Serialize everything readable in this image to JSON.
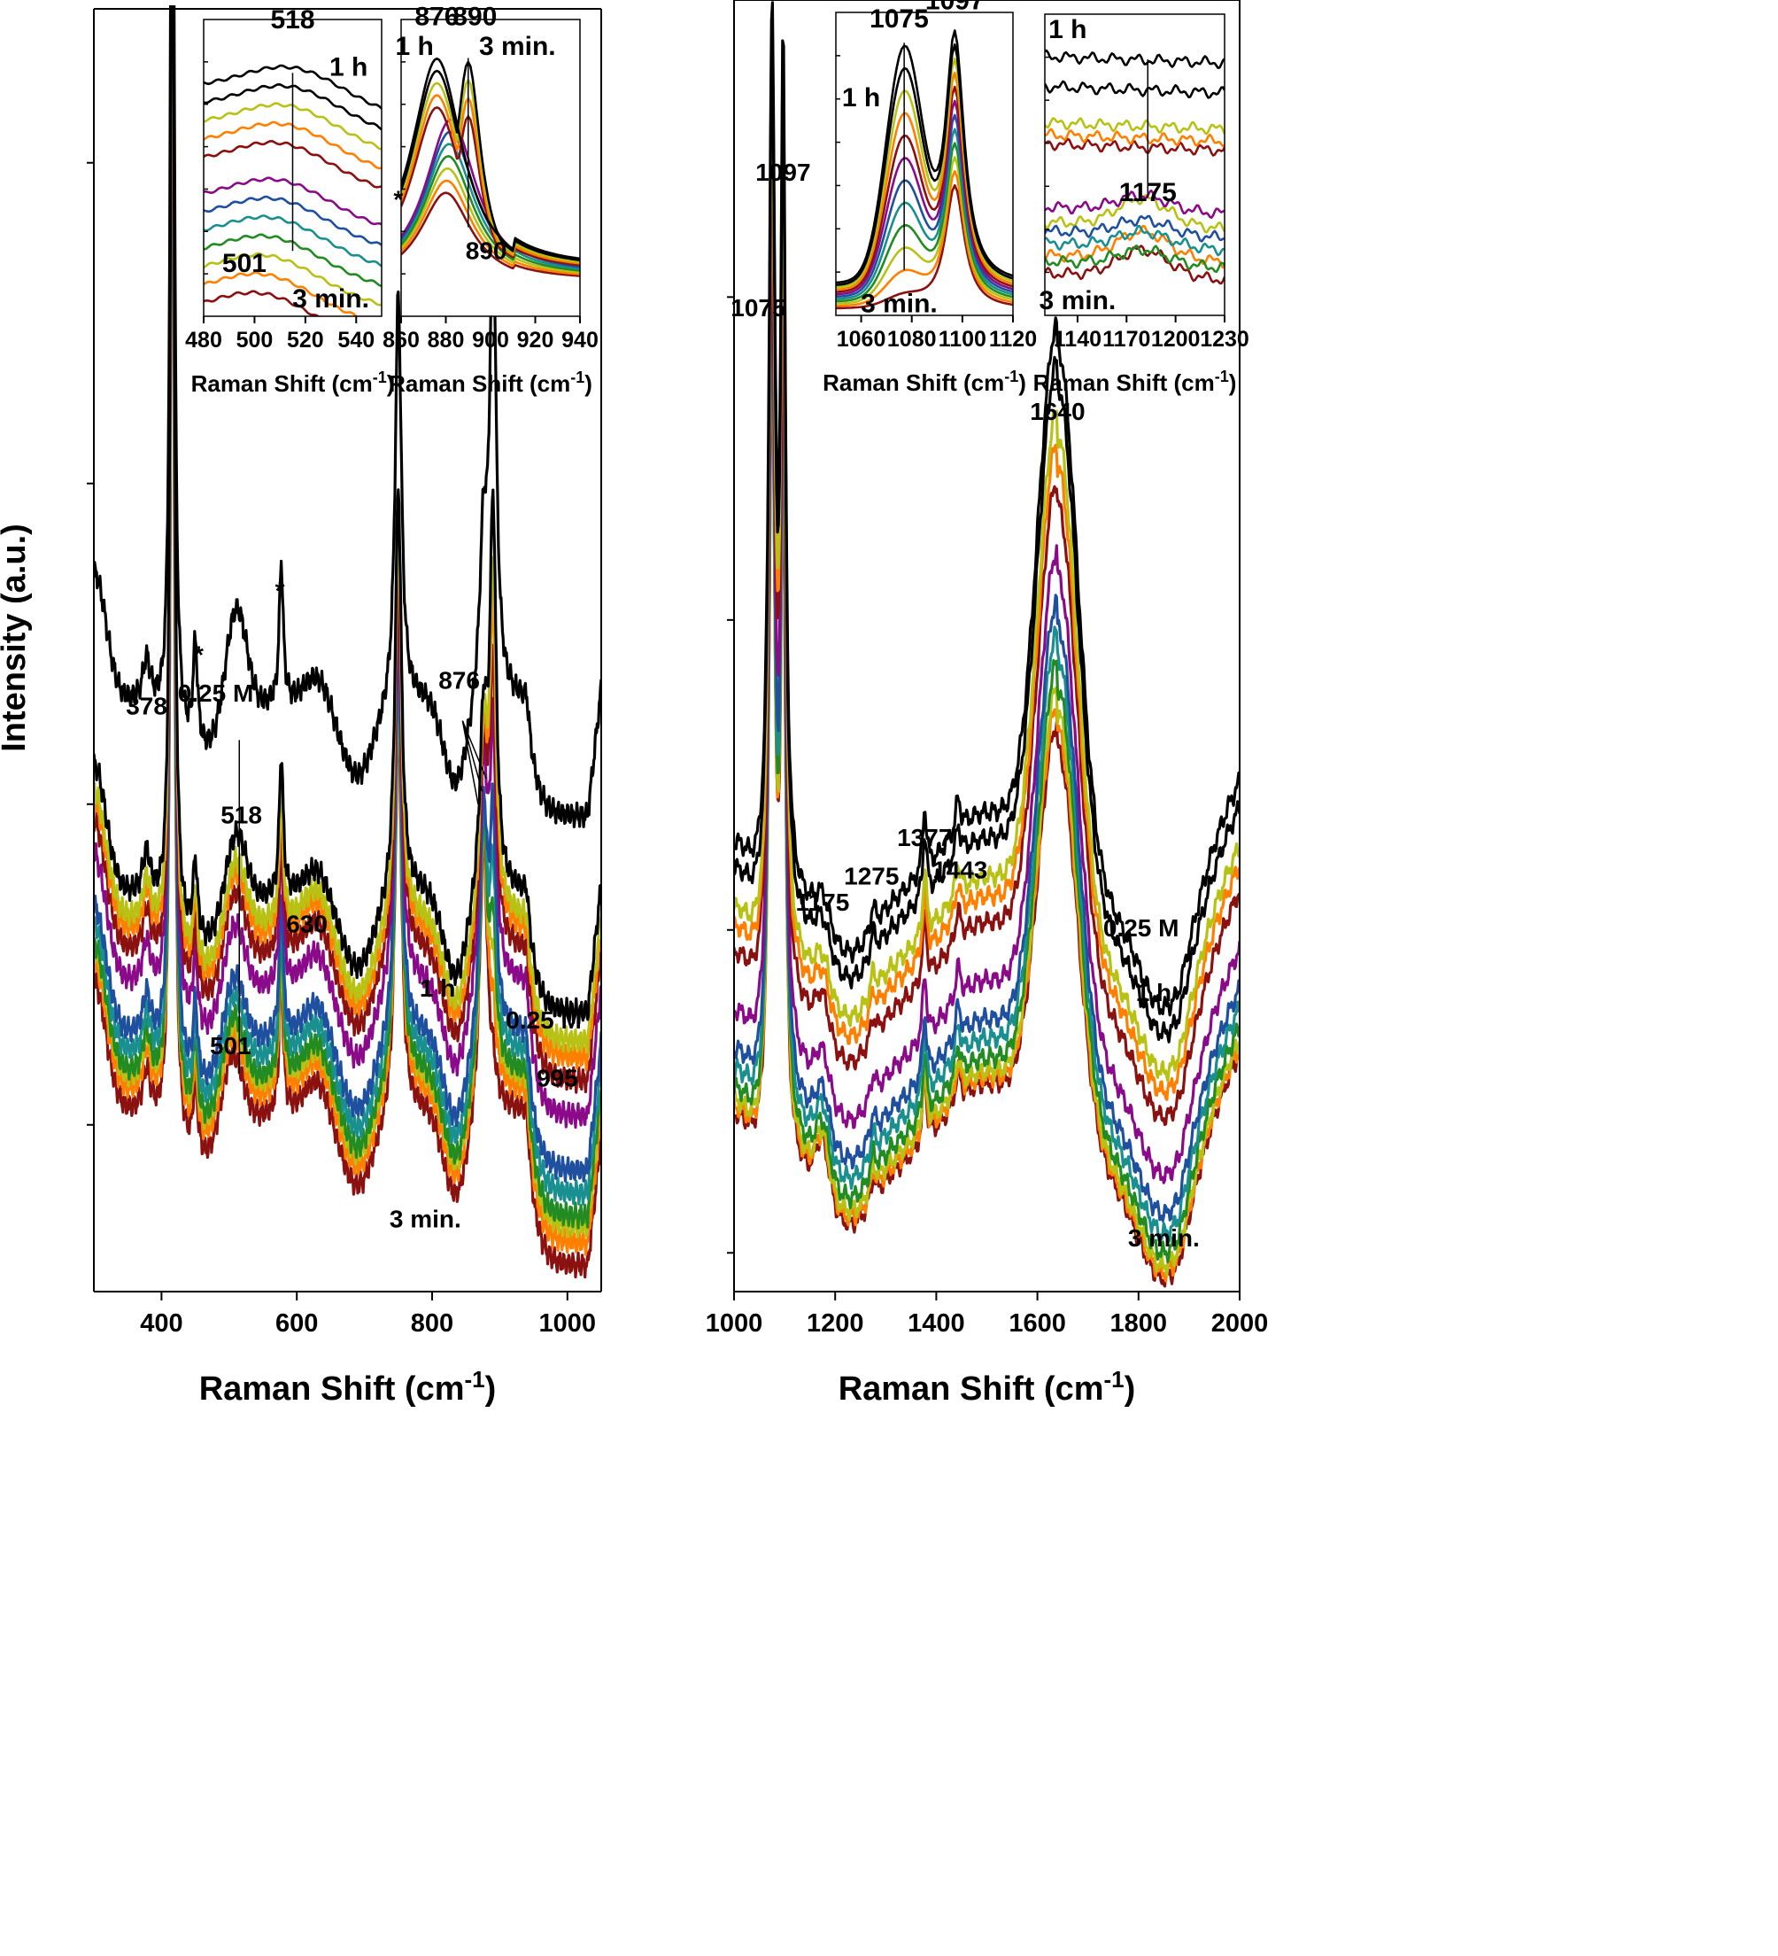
{
  "figure": {
    "y_axis_title": "Intensity (a.u.)"
  },
  "chart_data": [
    {
      "type": "line",
      "panel": "left-main",
      "xlabel": "Raman Shift (cm",
      "xlabel_sup": "-1",
      "xlabel_end": ")",
      "ylabel": "Intensity (a.u.)",
      "xlim": [
        300,
        1050
      ],
      "ylim": [
        0,
        100
      ],
      "xticks": [
        "400",
        "600",
        "800",
        "1000"
      ],
      "x_tick_values": [
        400,
        600,
        800,
        1000
      ],
      "y_minor_ticks": [
        13,
        38,
        63,
        88
      ],
      "series_count": 12,
      "series_colors": [
        "#000000",
        "#000000",
        "#b8c214",
        "#ff8000",
        "#8b1010",
        "#8a0a8a",
        "#1f4f9f",
        "#1a8f8f",
        "#228b22",
        "#b8c214",
        "#ff8000",
        "#8b1010"
      ],
      "series_offsets": [
        46,
        31,
        29,
        28,
        26.5,
        24,
        20,
        18.5,
        17,
        16.5,
        15.5,
        14
      ],
      "peaks": [
        {
          "x": 378,
          "h": 2,
          "w": 8
        },
        {
          "x": 416,
          "h": 95,
          "w": 3
        },
        {
          "x": 450,
          "h": 6,
          "w": 4
        },
        {
          "x": 515,
          "h": 7,
          "w": 20
        },
        {
          "x": 577,
          "h": 12,
          "w": 3.5
        },
        {
          "x": 750,
          "h": 32,
          "w": 6
        },
        {
          "x": 876,
          "h": 22,
          "w": 7
        },
        {
          "x": 890,
          "h": 30,
          "w": 6
        }
      ],
      "annotations": [
        {
          "text": "*",
          "x": 425,
          "y": 101
        },
        {
          "text": "378",
          "x": 378,
          "y": 45
        },
        {
          "text": "*",
          "x": 455,
          "y": 49
        },
        {
          "text": "0.25 M",
          "x": 480,
          "y": 46
        },
        {
          "text": "*",
          "x": 575,
          "y": 54
        },
        {
          "text": "*",
          "x": 750,
          "y": 84.5
        },
        {
          "text": "890",
          "x": 880,
          "y": 80.5
        },
        {
          "text": "876",
          "x": 840,
          "y": 47
        },
        {
          "text": "518",
          "x": 518,
          "y": 36.5
        },
        {
          "text": "630",
          "x": 615,
          "y": 28
        },
        {
          "text": "1 h",
          "x": 808,
          "y": 23
        },
        {
          "text": "0.25 M",
          "x": 965,
          "y": 20.5
        },
        {
          "text": "995",
          "x": 985,
          "y": 16
        },
        {
          "text": "501",
          "x": 502,
          "y": 18.5
        },
        {
          "text": "3 min.",
          "x": 790,
          "y": 5
        }
      ]
    },
    {
      "type": "line",
      "panel": "left-inset-a",
      "xlabel": "Raman Shift (cm",
      "xlabel_sup": "-1",
      "xlabel_end": ")",
      "xlim": [
        480,
        550
      ],
      "xticks": [
        "480",
        "500",
        "520",
        "540"
      ],
      "x_tick_values": [
        480,
        500,
        520,
        540
      ],
      "annotations": [
        {
          "text": "518",
          "x": 515,
          "y": 97
        },
        {
          "text": "1 h",
          "x": 537,
          "y": 81
        },
        {
          "text": "501",
          "x": 496,
          "y": 15
        },
        {
          "text": "3 min.",
          "x": 530,
          "y": 3
        }
      ]
    },
    {
      "type": "line",
      "panel": "left-inset-b",
      "xlabel": "Raman Shift (cm",
      "xlabel_sup": "-1",
      "xlabel_end": ")",
      "xlim": [
        860,
        940
      ],
      "xticks": [
        "860",
        "880",
        "900",
        "920",
        "940"
      ],
      "x_tick_values": [
        860,
        880,
        900,
        920,
        940
      ],
      "annotations": [
        {
          "text": "876",
          "x": 876,
          "y": 98
        },
        {
          "text": "890",
          "x": 893,
          "y": 98
        },
        {
          "text": "1 h",
          "x": 866,
          "y": 88
        },
        {
          "text": "3 min.",
          "x": 912,
          "y": 88
        }
      ]
    },
    {
      "type": "line",
      "panel": "right-main",
      "xlabel": "Raman Shift (cm",
      "xlabel_sup": "-1",
      "xlabel_end": ")",
      "xlim": [
        1000,
        2000
      ],
      "ylim": [
        0,
        100
      ],
      "xticks": [
        "1000",
        "1200",
        "1400",
        "1600",
        "1800",
        "2000"
      ],
      "x_tick_values": [
        1000,
        1200,
        1400,
        1600,
        1800,
        2000
      ],
      "y_minor_ticks": [
        3,
        28,
        52,
        77
      ],
      "series_count": 12,
      "series_colors": [
        "#000000",
        "#000000",
        "#b8c214",
        "#ff8000",
        "#8b1010",
        "#8a0a8a",
        "#1f4f9f",
        "#1a8f8f",
        "#228b22",
        "#b8c214",
        "#ff8000",
        "#8b1010"
      ],
      "series_offsets": [
        30,
        28,
        25,
        23.5,
        21.5,
        17,
        14,
        12.5,
        11,
        10,
        9.5,
        9
      ],
      "annotations": [
        {
          "text": "1097",
          "x": 1097,
          "y": 86
        },
        {
          "text": "1075",
          "x": 1048,
          "y": 75.5
        },
        {
          "text": "1640",
          "x": 1640,
          "y": 67.5
        },
        {
          "text": "1377",
          "x": 1377,
          "y": 34.5
        },
        {
          "text": "1275",
          "x": 1272,
          "y": 31.5
        },
        {
          "text": "1443",
          "x": 1447,
          "y": 32
        },
        {
          "text": "1175",
          "x": 1175,
          "y": 29.5
        },
        {
          "text": "0.25 M",
          "x": 1805,
          "y": 27.5
        },
        {
          "text": "1 h",
          "x": 1830,
          "y": 22.5
        },
        {
          "text": "3 min.",
          "x": 1850,
          "y": 3.5
        }
      ]
    },
    {
      "type": "line",
      "panel": "right-inset-a",
      "xlabel": "Raman Shift (cm",
      "xlabel_sup": "-1",
      "xlabel_end": ")",
      "xlim": [
        1050,
        1120
      ],
      "xticks": [
        "1060",
        "1080",
        "1100",
        "1120"
      ],
      "x_tick_values": [
        1060,
        1080,
        1100,
        1120
      ],
      "annotations": [
        {
          "text": "1075",
          "x": 1075,
          "y": 95
        },
        {
          "text": "1097",
          "x": 1097,
          "y": 101
        },
        {
          "text": "1 h",
          "x": 1060,
          "y": 69
        },
        {
          "text": "3 min.",
          "x": 1075,
          "y": 1
        }
      ]
    },
    {
      "type": "line",
      "panel": "right-inset-b",
      "xlabel": "Raman Shift (cm",
      "xlabel_sup": "-1",
      "xlabel_end": ")",
      "xlim": [
        1120,
        1230
      ],
      "xticks": [
        "1140",
        "1170",
        "1200",
        "1230"
      ],
      "x_tick_values": [
        1140,
        1170,
        1200,
        1230
      ],
      "annotations": [
        {
          "text": "1 h",
          "x": 1134,
          "y": 92
        },
        {
          "text": "1175",
          "x": 1183,
          "y": 38
        },
        {
          "text": "3 min.",
          "x": 1140,
          "y": 2
        }
      ]
    }
  ]
}
